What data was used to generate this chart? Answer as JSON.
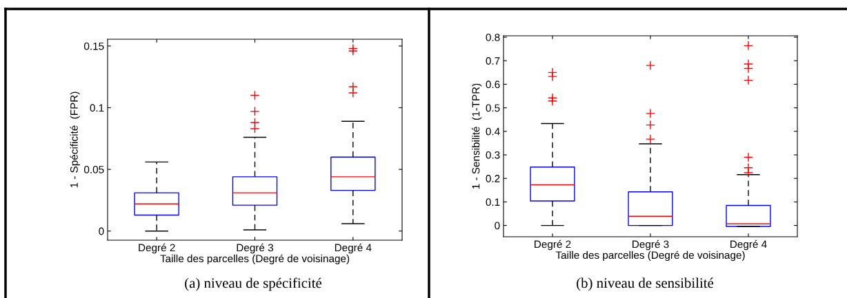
{
  "chart_data": [
    {
      "type": "box",
      "xlabel": "Taille des parcelles (Degré de voisinage)",
      "ylabel": "1 - Spécificité  (FPR)",
      "categories": [
        "Degré 2",
        "Degré 3",
        "Degré 4"
      ],
      "ylim": [
        -0.0074,
        0.1555
      ],
      "yticks": [
        0,
        0.05,
        0.1,
        0.15
      ],
      "annotations": [
        "(a) niveau de spécificité"
      ],
      "boxes": [
        {
          "low": 0,
          "q1": 0.013,
          "median": 0.022,
          "q3": 0.031,
          "high": 0.056
        },
        {
          "low": 0.001,
          "q1": 0.021,
          "median": 0.031,
          "q3": 0.044,
          "high": 0.076,
          "outliers": [
            0.083,
            0.088,
            0.097,
            0.11
          ]
        },
        {
          "low": 0.006,
          "q1": 0.033,
          "median": 0.044,
          "q3": 0.06,
          "high": 0.089,
          "outliers": [
            0.112,
            0.117,
            0.146,
            0.148
          ]
        }
      ]
    },
    {
      "type": "box",
      "xlabel": "Taille des parcelles (Degré de voisinage)",
      "ylabel": "1 - Sensibilité  (1-TPR)",
      "categories": [
        "Degré 2",
        "Degré 3",
        "Degré 4"
      ],
      "ylim": [
        -0.048,
        0.806
      ],
      "yticks": [
        0,
        0.1,
        0.2,
        0.3,
        0.4,
        0.5,
        0.6,
        0.7,
        0.8
      ],
      "annotations": [
        "(b) niveau de sensibilité"
      ],
      "boxes": [
        {
          "low": 0,
          "q1": 0.104,
          "median": 0.173,
          "q3": 0.248,
          "high": 0.433,
          "outliers": [
            0.529,
            0.542,
            0.633,
            0.65
          ]
        },
        {
          "low": 0,
          "q1": 0,
          "median": 0.039,
          "q3": 0.143,
          "high": 0.347,
          "outliers": [
            0.367,
            0.427,
            0.476,
            0.68
          ]
        },
        {
          "low": -0.004,
          "q1": -0.004,
          "median": 0.007,
          "q3": 0.085,
          "high": 0.216,
          "outliers": [
            0.224,
            0.245,
            0.29,
            0.617,
            0.667,
            0.686,
            0.764
          ]
        }
      ]
    }
  ]
}
